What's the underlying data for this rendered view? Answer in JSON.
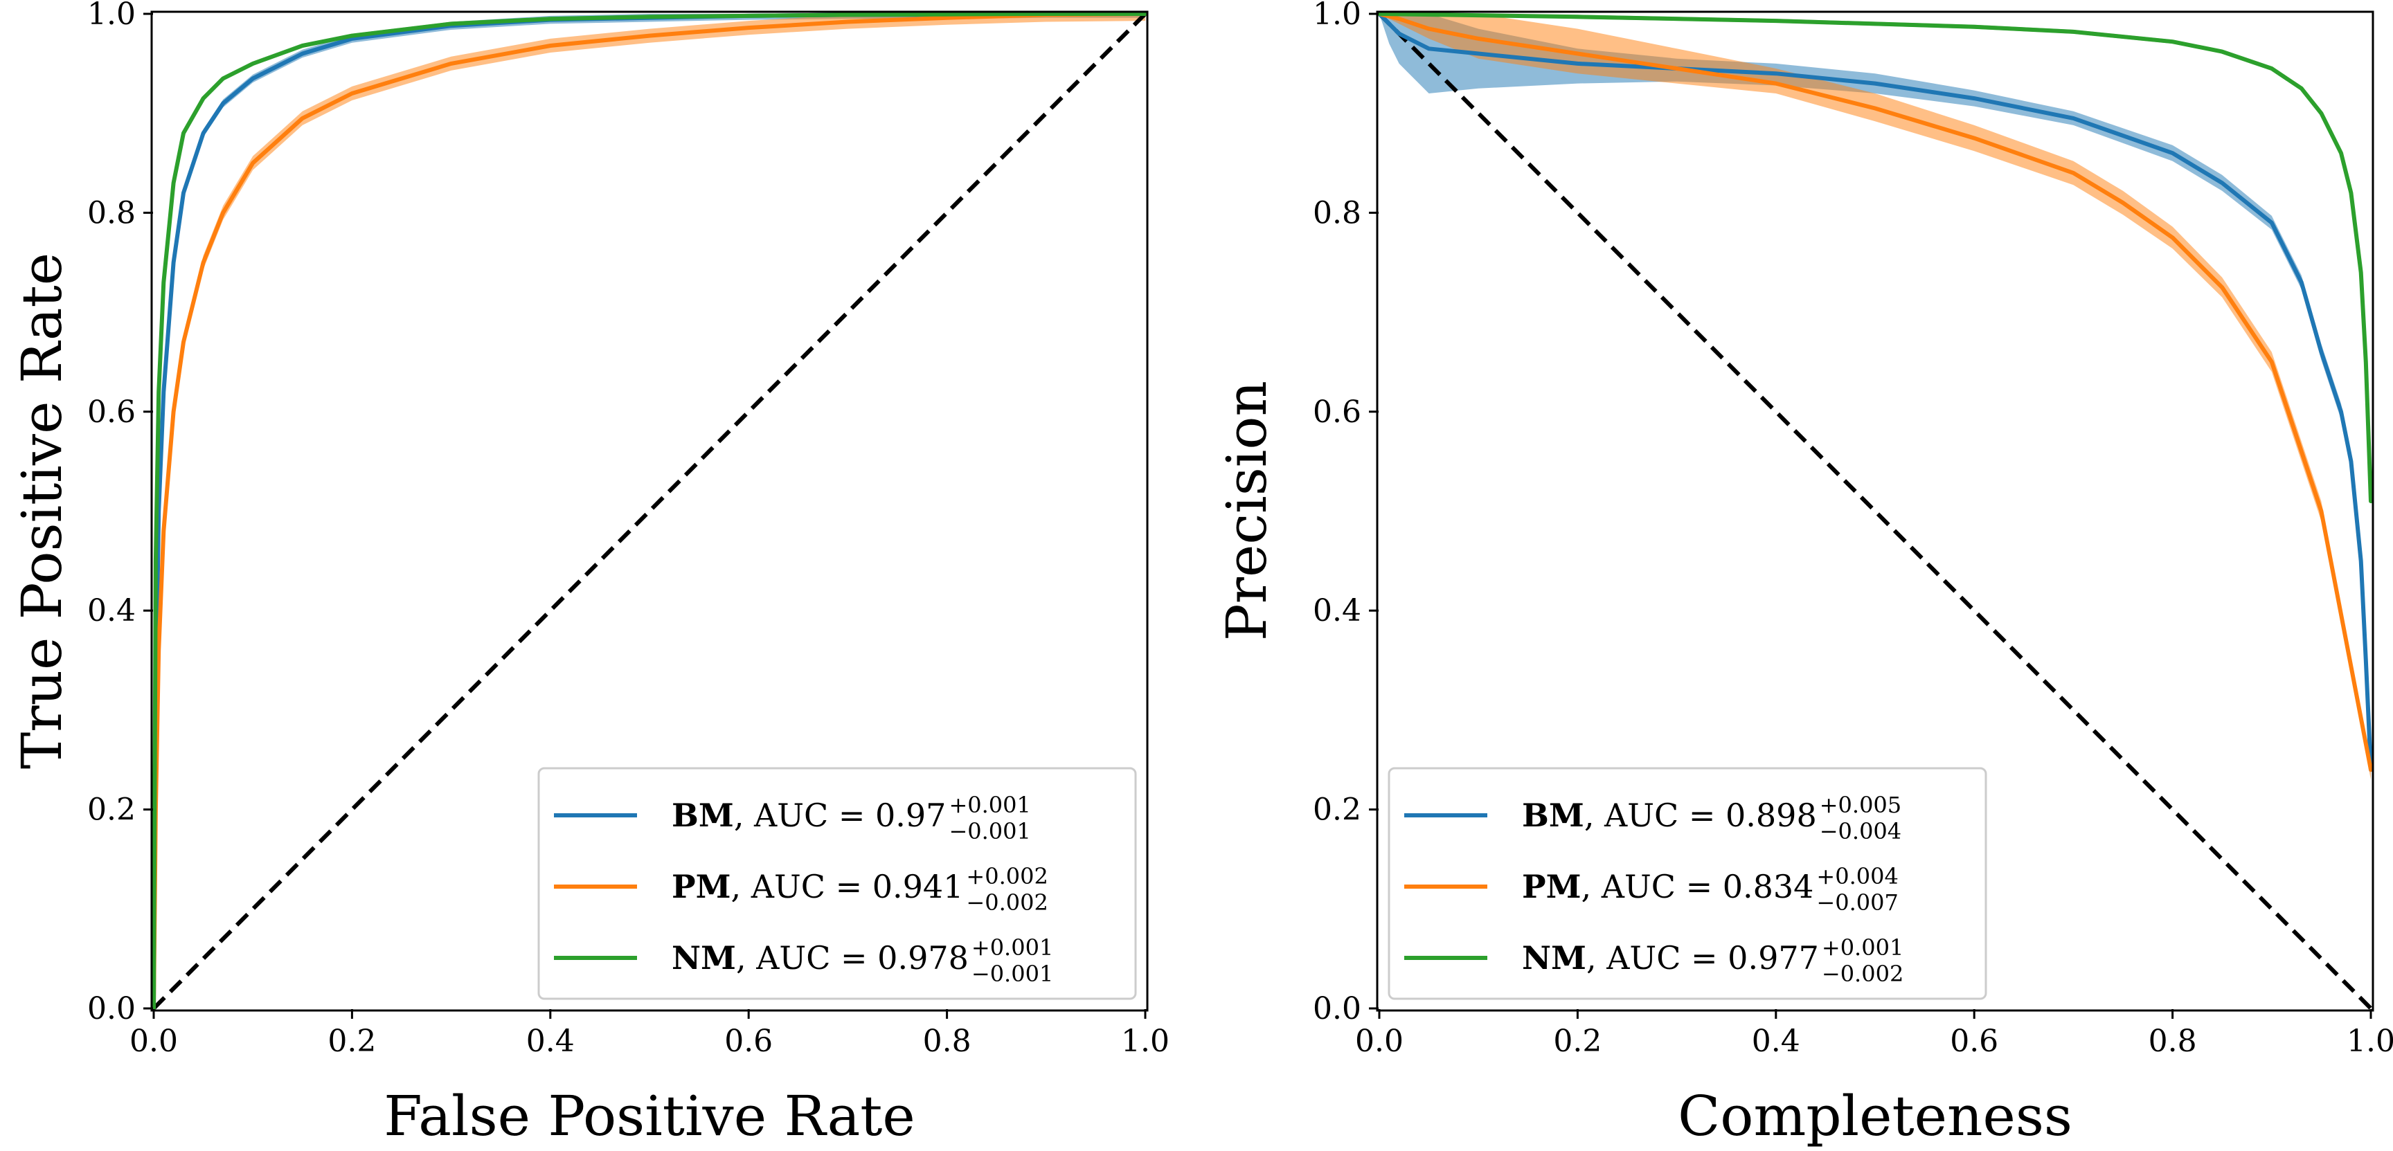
{
  "figure": {
    "panels": [
      "roc",
      "pr"
    ]
  },
  "chart_data": [
    {
      "id": "roc",
      "type": "line",
      "title": "",
      "xlabel": "False Positive Rate",
      "ylabel": "True Positive Rate",
      "xlim": [
        0,
        1
      ],
      "ylim": [
        0,
        1
      ],
      "xticks": [
        "0.0",
        "0.2",
        "0.4",
        "0.6",
        "0.8",
        "1.0"
      ],
      "yticks": [
        "0.0",
        "0.2",
        "0.4",
        "0.6",
        "0.8",
        "1.0"
      ],
      "grid": false,
      "legend_position": "lower-right",
      "reference_line": {
        "x": [
          0,
          1
        ],
        "y": [
          0,
          1
        ],
        "style": "dashed",
        "color": "#000000"
      },
      "series": [
        {
          "name": "BM",
          "metric": "AUC",
          "auc": "0.97",
          "auc_plus": "+0.001",
          "auc_minus": "−0.001",
          "color": "#1f77b4",
          "band": 0.004,
          "x": [
            0,
            0.002,
            0.005,
            0.01,
            0.02,
            0.03,
            0.05,
            0.07,
            0.1,
            0.15,
            0.2,
            0.3,
            0.4,
            0.5,
            0.6,
            0.7,
            0.8,
            0.9,
            1.0
          ],
          "y": [
            0,
            0.3,
            0.5,
            0.62,
            0.75,
            0.82,
            0.88,
            0.91,
            0.935,
            0.96,
            0.975,
            0.988,
            0.994,
            0.996,
            0.998,
            0.999,
            0.999,
            1.0,
            1.0
          ]
        },
        {
          "name": "PM",
          "metric": "AUC",
          "auc": "0.941",
          "auc_plus": "+0.002",
          "auc_minus": "−0.002",
          "color": "#ff7f0e",
          "band": 0.007,
          "x": [
            0,
            0.002,
            0.005,
            0.01,
            0.02,
            0.03,
            0.05,
            0.07,
            0.1,
            0.15,
            0.2,
            0.3,
            0.4,
            0.5,
            0.6,
            0.7,
            0.8,
            0.9,
            1.0
          ],
          "y": [
            0,
            0.2,
            0.36,
            0.48,
            0.6,
            0.67,
            0.75,
            0.8,
            0.85,
            0.895,
            0.92,
            0.95,
            0.968,
            0.978,
            0.986,
            0.992,
            0.996,
            0.999,
            1.0
          ]
        },
        {
          "name": "NM",
          "metric": "AUC",
          "auc": "0.978",
          "auc_plus": "+0.001",
          "auc_minus": "−0.001",
          "color": "#2ca02c",
          "band": 0.002,
          "x": [
            0,
            0.002,
            0.005,
            0.01,
            0.02,
            0.03,
            0.05,
            0.07,
            0.1,
            0.15,
            0.2,
            0.3,
            0.4,
            0.5,
            0.6,
            0.7,
            0.8,
            0.9,
            1.0
          ],
          "y": [
            0,
            0.45,
            0.62,
            0.73,
            0.83,
            0.88,
            0.915,
            0.935,
            0.95,
            0.968,
            0.978,
            0.99,
            0.995,
            0.997,
            0.998,
            0.999,
            0.9995,
            1.0,
            1.0
          ]
        }
      ]
    },
    {
      "id": "pr",
      "type": "line",
      "title": "",
      "xlabel": "Completeness",
      "ylabel": "Precision",
      "xlim": [
        0,
        1
      ],
      "ylim": [
        0,
        1
      ],
      "xticks": [
        "0.0",
        "0.2",
        "0.4",
        "0.6",
        "0.8",
        "1.0"
      ],
      "yticks": [
        "0.0",
        "0.2",
        "0.4",
        "0.6",
        "0.8",
        "1.0"
      ],
      "grid": false,
      "legend_position": "lower-left",
      "reference_line": {
        "x": [
          0,
          1
        ],
        "y": [
          1,
          0
        ],
        "style": "dashed",
        "color": "#000000"
      },
      "series": [
        {
          "name": "BM",
          "metric": "AUC",
          "auc": "0.898",
          "auc_plus": "+0.005",
          "auc_minus": "−0.004",
          "color": "#1f77b4",
          "x": [
            0,
            0.01,
            0.02,
            0.05,
            0.1,
            0.2,
            0.3,
            0.4,
            0.5,
            0.6,
            0.7,
            0.8,
            0.85,
            0.9,
            0.93,
            0.95,
            0.97,
            0.98,
            0.99,
            0.995,
            1.0
          ],
          "y": [
            1.0,
            0.99,
            0.98,
            0.965,
            0.96,
            0.95,
            0.945,
            0.94,
            0.93,
            0.915,
            0.895,
            0.86,
            0.83,
            0.79,
            0.73,
            0.66,
            0.6,
            0.55,
            0.45,
            0.35,
            0.24
          ],
          "upper": [
            1.0,
            1.0,
            1.0,
            1.0,
            0.985,
            0.965,
            0.955,
            0.95,
            0.94,
            0.923,
            0.902,
            0.868,
            0.838,
            0.797,
            0.737,
            0.668,
            0.608,
            0.558,
            0.458,
            0.358,
            0.248
          ],
          "lower": [
            1.0,
            0.97,
            0.95,
            0.92,
            0.925,
            0.93,
            0.932,
            0.928,
            0.92,
            0.907,
            0.888,
            0.852,
            0.822,
            0.783,
            0.723,
            0.652,
            0.592,
            0.542,
            0.442,
            0.342,
            0.232
          ]
        },
        {
          "name": "PM",
          "metric": "AUC",
          "auc": "0.834",
          "auc_plus": "+0.004",
          "auc_minus": "−0.007",
          "color": "#ff7f0e",
          "x": [
            0,
            0.02,
            0.05,
            0.1,
            0.2,
            0.3,
            0.4,
            0.5,
            0.6,
            0.7,
            0.75,
            0.8,
            0.85,
            0.9,
            0.95,
            1.0
          ],
          "y": [
            1.0,
            0.995,
            0.985,
            0.975,
            0.96,
            0.945,
            0.93,
            0.905,
            0.875,
            0.84,
            0.81,
            0.775,
            0.725,
            0.65,
            0.5,
            0.24
          ],
          "upper": [
            1.0,
            1.0,
            1.0,
            1.0,
            0.985,
            0.965,
            0.945,
            0.92,
            0.888,
            0.852,
            0.822,
            0.786,
            0.735,
            0.66,
            0.51,
            0.25
          ],
          "lower": [
            1.0,
            0.99,
            0.975,
            0.955,
            0.94,
            0.93,
            0.92,
            0.892,
            0.862,
            0.828,
            0.798,
            0.764,
            0.715,
            0.64,
            0.49,
            0.23
          ]
        },
        {
          "name": "NM",
          "metric": "AUC",
          "auc": "0.977",
          "auc_plus": "+0.001",
          "auc_minus": "−0.002",
          "color": "#2ca02c",
          "x": [
            0,
            0.2,
            0.4,
            0.6,
            0.7,
            0.8,
            0.85,
            0.9,
            0.93,
            0.95,
            0.97,
            0.98,
            0.99,
            0.995,
            1.0
          ],
          "y": [
            1.0,
            0.997,
            0.993,
            0.987,
            0.982,
            0.972,
            0.962,
            0.945,
            0.925,
            0.9,
            0.86,
            0.82,
            0.74,
            0.65,
            0.51
          ],
          "upper": [
            1.0,
            0.999,
            0.995,
            0.989,
            0.984,
            0.974,
            0.964,
            0.947,
            0.927,
            0.902,
            0.862,
            0.822,
            0.742,
            0.652,
            0.512
          ],
          "lower": [
            1.0,
            0.995,
            0.991,
            0.985,
            0.98,
            0.97,
            0.96,
            0.943,
            0.923,
            0.898,
            0.858,
            0.818,
            0.738,
            0.648,
            0.508
          ]
        }
      ]
    }
  ]
}
